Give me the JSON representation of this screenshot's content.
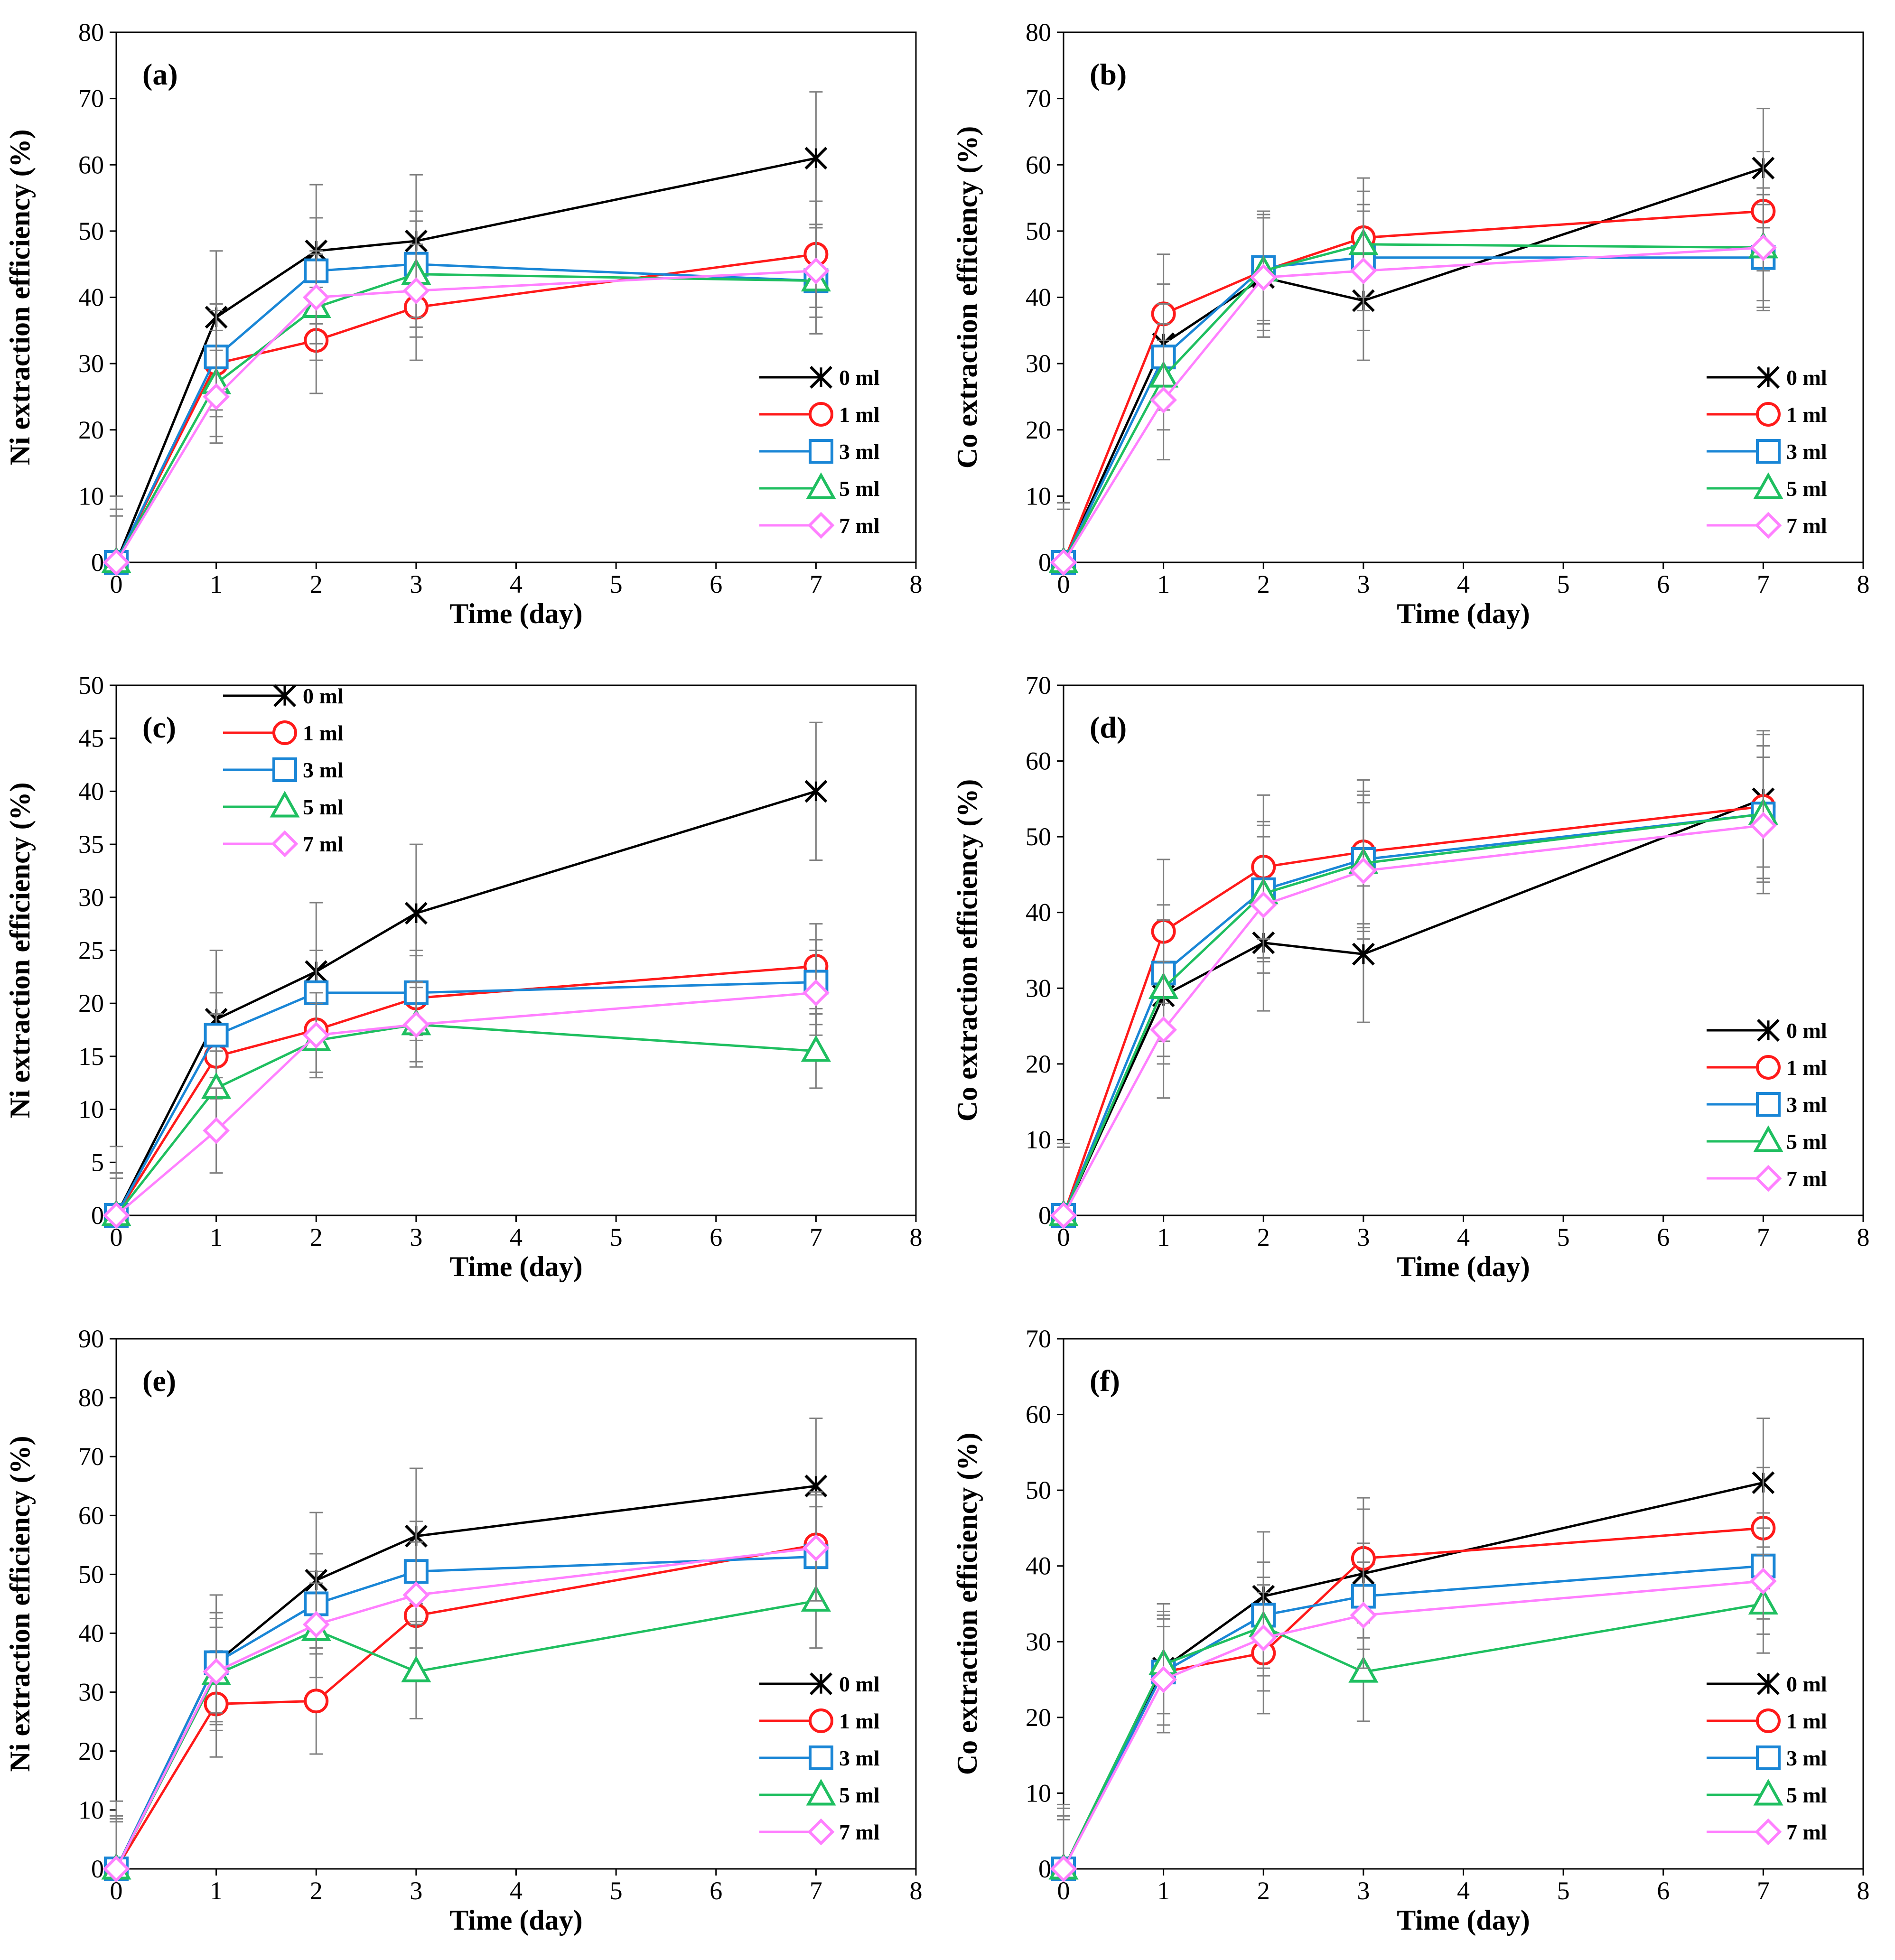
{
  "figure": {
    "marker_types": {
      "0 ml": "star",
      "1 ml": "circle",
      "3 ml": "square",
      "5 ml": "triangle",
      "7 ml": "diamond"
    },
    "series_colors": {
      "0 ml": "#000000",
      "1 ml": "#ff1a1a",
      "3 ml": "#1a86d6",
      "5 ml": "#1fbf60",
      "7 ml": "#ff80ff"
    }
  },
  "chart_data": [
    {
      "id": "a",
      "type": "line",
      "panel_label": "(a)",
      "xlabel": "Time (day)",
      "ylabel": "Ni extraction efficiency (%)",
      "xlim": [
        0,
        8
      ],
      "ylim": [
        0,
        80
      ],
      "xticks": [
        0,
        1,
        2,
        3,
        4,
        5,
        6,
        7,
        8
      ],
      "yticks": [
        0,
        10,
        20,
        30,
        40,
        50,
        60,
        70,
        80
      ],
      "legend_position": "bottom-right",
      "x": [
        0,
        1,
        2,
        3,
        7
      ],
      "series": [
        {
          "name": "0 ml",
          "values": [
            0,
            37,
            47,
            48.5,
            61
          ],
          "errors": [
            10,
            10,
            10,
            10,
            10
          ]
        },
        {
          "name": "1 ml",
          "values": [
            0,
            30,
            33.5,
            38.5,
            46.5
          ],
          "errors": [
            8,
            8,
            8,
            8,
            8
          ]
        },
        {
          "name": "3 ml",
          "values": [
            0,
            31,
            44,
            45,
            42.5
          ],
          "errors": [
            8,
            8,
            8,
            8,
            8
          ]
        },
        {
          "name": "5 ml",
          "values": [
            0,
            27,
            38.5,
            43.5,
            42.5
          ],
          "errors": [
            8,
            8,
            8,
            8,
            8
          ]
        },
        {
          "name": "7 ml",
          "values": [
            0,
            25,
            40,
            41,
            44
          ],
          "errors": [
            7,
            7,
            7,
            7,
            7
          ]
        }
      ]
    },
    {
      "id": "b",
      "type": "line",
      "panel_label": "(b)",
      "xlabel": "Time (day)",
      "ylabel": "Co extraction efficiency (%)",
      "xlim": [
        0,
        8
      ],
      "ylim": [
        0,
        80
      ],
      "xticks": [
        0,
        1,
        2,
        3,
        4,
        5,
        6,
        7,
        8
      ],
      "yticks": [
        0,
        10,
        20,
        30,
        40,
        50,
        60,
        70,
        80
      ],
      "legend_position": "bottom-right",
      "x": [
        0,
        1,
        2,
        3,
        7
      ],
      "series": [
        {
          "name": "0 ml",
          "values": [
            0,
            33,
            43,
            39.5,
            59.5
          ],
          "errors": [
            9,
            9,
            9,
            9,
            9
          ]
        },
        {
          "name": "1 ml",
          "values": [
            0,
            37.5,
            44,
            49,
            53
          ],
          "errors": [
            9,
            9,
            9,
            9,
            9
          ]
        },
        {
          "name": "3 ml",
          "values": [
            0,
            31,
            44.5,
            46,
            46
          ],
          "errors": [
            8,
            8,
            8,
            8,
            8
          ]
        },
        {
          "name": "5 ml",
          "values": [
            0,
            28,
            44,
            48,
            47.5
          ],
          "errors": [
            8,
            8,
            8,
            8,
            8
          ]
        },
        {
          "name": "7 ml",
          "values": [
            0,
            24.5,
            43,
            44,
            47.5
          ],
          "errors": [
            9,
            9,
            9,
            9,
            9
          ]
        }
      ]
    },
    {
      "id": "c",
      "type": "line",
      "panel_label": "(c)",
      "xlabel": "Time (day)",
      "ylabel": "Ni extraction efficiency (%)",
      "xlim": [
        0,
        8
      ],
      "ylim": [
        0,
        50
      ],
      "xticks": [
        0,
        1,
        2,
        3,
        4,
        5,
        6,
        7,
        8
      ],
      "yticks": [
        0,
        5,
        10,
        15,
        20,
        25,
        30,
        35,
        40,
        45,
        50
      ],
      "legend_position": "top-left",
      "x": [
        0,
        1,
        2,
        3,
        7
      ],
      "series": [
        {
          "name": "0 ml",
          "values": [
            0,
            18.5,
            23,
            28.5,
            40
          ],
          "errors": [
            6.5,
            6.5,
            6.5,
            6.5,
            6.5
          ]
        },
        {
          "name": "1 ml",
          "values": [
            0,
            15,
            17.5,
            20.5,
            23.5
          ],
          "errors": [
            4,
            4,
            4,
            4,
            4
          ]
        },
        {
          "name": "3 ml",
          "values": [
            0,
            17,
            21,
            21,
            22
          ],
          "errors": [
            4,
            4,
            4,
            4,
            4
          ]
        },
        {
          "name": "5 ml",
          "values": [
            0,
            12,
            16.5,
            18,
            15.5
          ],
          "errors": [
            3.5,
            3.5,
            3.5,
            3.5,
            3.5
          ]
        },
        {
          "name": "7 ml",
          "values": [
            0,
            8,
            17,
            18,
            21
          ],
          "errors": [
            4,
            4,
            4,
            4,
            4
          ]
        }
      ]
    },
    {
      "id": "d",
      "type": "line",
      "panel_label": "(d)",
      "xlabel": "Time (day)",
      "ylabel": "Co extraction efficiency (%)",
      "xlim": [
        0,
        8
      ],
      "ylim": [
        0,
        70
      ],
      "xticks": [
        0,
        1,
        2,
        3,
        4,
        5,
        6,
        7,
        8
      ],
      "yticks": [
        0,
        10,
        20,
        30,
        40,
        50,
        60,
        70
      ],
      "legend_position": "bottom-right",
      "x": [
        0,
        1,
        2,
        3,
        7
      ],
      "series": [
        {
          "name": "0 ml",
          "values": [
            0,
            29,
            36,
            34.5,
            55
          ],
          "errors": [
            9,
            9,
            9,
            9,
            9
          ]
        },
        {
          "name": "1 ml",
          "values": [
            0,
            37.5,
            46,
            48,
            54
          ],
          "errors": [
            9.5,
            9.5,
            9.5,
            9.5,
            9.5
          ]
        },
        {
          "name": "3 ml",
          "values": [
            0,
            32,
            43,
            47,
            53
          ],
          "errors": [
            9,
            9,
            9,
            9,
            9
          ]
        },
        {
          "name": "5 ml",
          "values": [
            0,
            30,
            42.5,
            46.5,
            53
          ],
          "errors": [
            9,
            9,
            9,
            9,
            9
          ]
        },
        {
          "name": "7 ml",
          "values": [
            0,
            24.5,
            41,
            45.5,
            51.5
          ],
          "errors": [
            9,
            9,
            9,
            9,
            9
          ]
        }
      ]
    },
    {
      "id": "e",
      "type": "line",
      "panel_label": "(e)",
      "xlabel": "Time (day)",
      "ylabel": "Ni extraction efficiency (%)",
      "xlim": [
        0,
        8
      ],
      "ylim": [
        0,
        90
      ],
      "xticks": [
        0,
        1,
        2,
        3,
        4,
        5,
        6,
        7,
        8
      ],
      "yticks": [
        0,
        10,
        20,
        30,
        40,
        50,
        60,
        70,
        80,
        90
      ],
      "legend_position": "bottom-right",
      "x": [
        0,
        1,
        2,
        3,
        7
      ],
      "series": [
        {
          "name": "0 ml",
          "values": [
            0,
            35,
            49,
            56.5,
            65
          ],
          "errors": [
            11.5,
            11.5,
            11.5,
            11.5,
            11.5
          ]
        },
        {
          "name": "1 ml",
          "values": [
            0,
            28,
            28.5,
            43,
            55
          ],
          "errors": [
            9,
            9,
            9,
            9,
            9
          ]
        },
        {
          "name": "3 ml",
          "values": [
            0,
            35,
            45,
            50.5,
            53
          ],
          "errors": [
            8.5,
            8.5,
            8.5,
            8.5,
            8.5
          ]
        },
        {
          "name": "5 ml",
          "values": [
            0,
            33,
            40.5,
            33.5,
            45.5
          ],
          "errors": [
            8,
            8,
            8,
            8,
            8
          ]
        },
        {
          "name": "7 ml",
          "values": [
            0,
            33.5,
            41.5,
            46.5,
            54.5
          ],
          "errors": [
            9,
            9,
            9,
            9,
            9
          ]
        }
      ]
    },
    {
      "id": "f",
      "type": "line",
      "panel_label": "(f)",
      "xlabel": "Time (day)",
      "ylabel": "Co extraction efficiency (%)",
      "xlim": [
        0,
        8
      ],
      "ylim": [
        0,
        70
      ],
      "xticks": [
        0,
        1,
        2,
        3,
        4,
        5,
        6,
        7,
        8
      ],
      "yticks": [
        0,
        10,
        20,
        30,
        40,
        50,
        60,
        70
      ],
      "legend_position": "bottom-right",
      "x": [
        0,
        1,
        2,
        3,
        7
      ],
      "series": [
        {
          "name": "0 ml",
          "values": [
            0,
            26.5,
            36,
            39,
            51
          ],
          "errors": [
            8.5,
            8.5,
            8.5,
            8.5,
            8.5
          ]
        },
        {
          "name": "1 ml",
          "values": [
            0,
            26,
            28.5,
            41,
            45
          ],
          "errors": [
            8,
            8,
            8,
            8,
            8
          ]
        },
        {
          "name": "3 ml",
          "values": [
            0,
            26,
            33.5,
            36,
            40
          ],
          "errors": [
            7,
            7,
            7,
            7,
            7
          ]
        },
        {
          "name": "5 ml",
          "values": [
            0,
            27,
            32,
            26,
            35
          ],
          "errors": [
            6.5,
            6.5,
            6.5,
            6.5,
            6.5
          ]
        },
        {
          "name": "7 ml",
          "values": [
            0,
            25,
            30.5,
            33.5,
            38
          ],
          "errors": [
            7,
            7,
            7,
            7,
            7
          ]
        }
      ]
    }
  ]
}
